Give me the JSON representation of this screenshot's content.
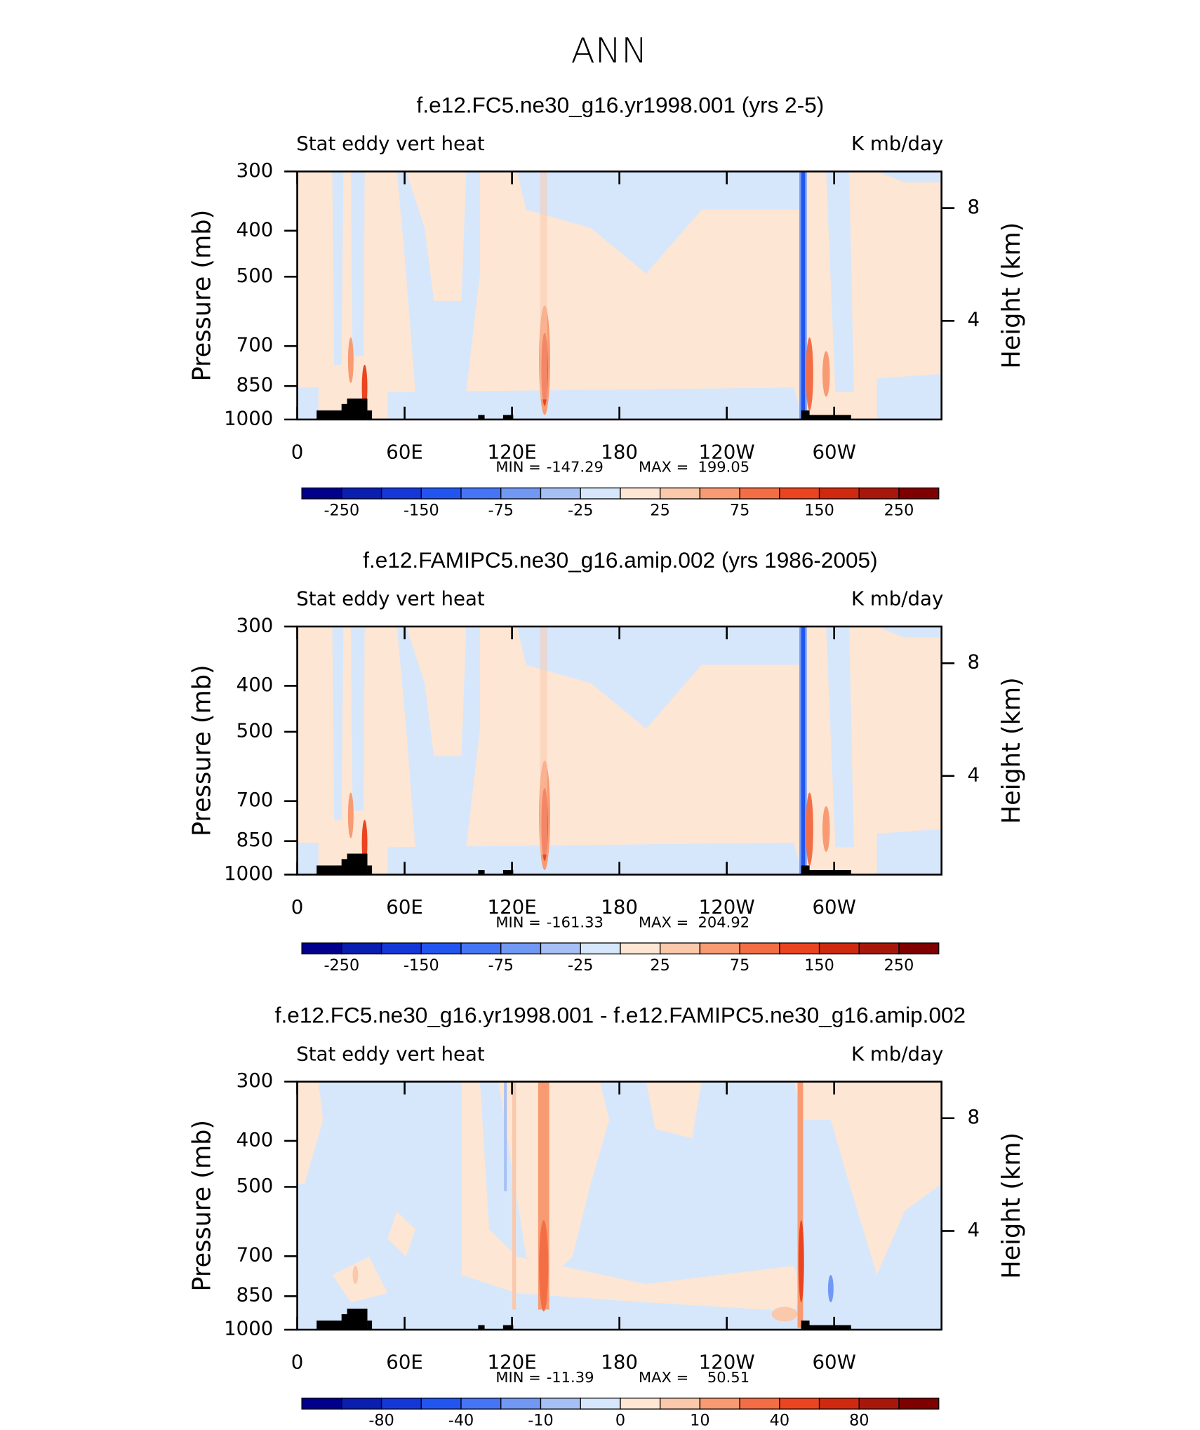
{
  "title": "ANN",
  "chart_data": [
    {
      "type": "contour",
      "title": "f.e12.FC5.ne30_g16.yr1998.001 (yrs 2-5)",
      "left_string": "Stat eddy vert heat",
      "right_string": "K mb/day",
      "ylabel": "Pressure (mb)",
      "y2label": "Height (km)",
      "log_y": true,
      "ylim": [
        1000,
        300
      ],
      "yticks": [
        300,
        400,
        500,
        700,
        850,
        1000
      ],
      "y2lim": [
        0.5,
        9.3
      ],
      "y2ticks": [
        4,
        8
      ],
      "xlim": [
        0,
        360
      ],
      "xticks": [
        0,
        {
          "value": 60,
          "label": "60E"
        },
        {
          "value": 120,
          "label": "120E"
        },
        180,
        {
          "value": 240,
          "label": "120W"
        },
        {
          "value": 300,
          "label": "60W"
        }
      ],
      "min_label": "MIN =",
      "min": -147.29,
      "max_label": "MAX =",
      "max": 199.05,
      "colorbar": {
        "colors": [
          "#00008c",
          "#0a1fb0",
          "#1438d8",
          "#2255f0",
          "#4575f5",
          "#7199f4",
          "#a6c0f5",
          "#d6e7fb",
          "#fde6d4",
          "#fac8ab",
          "#f89a72",
          "#f46e45",
          "#ea4420",
          "#cf2a10",
          "#a8180a",
          "#7f0000"
        ],
        "levels": [
          -250,
          -200,
          -150,
          -100,
          -75,
          -50,
          -25,
          0,
          25,
          50,
          75,
          100,
          150,
          200,
          250
        ],
        "ticks": [
          -250,
          -150,
          -75,
          -25,
          25,
          75,
          150,
          250
        ]
      }
    },
    {
      "type": "contour",
      "title": "f.e12.FAMIPC5.ne30_g16.amip.002 (yrs 1986-2005)",
      "left_string": "Stat eddy vert heat",
      "right_string": "K mb/day",
      "ylabel": "Pressure (mb)",
      "y2label": "Height (km)",
      "log_y": true,
      "ylim": [
        1000,
        300
      ],
      "yticks": [
        300,
        400,
        500,
        700,
        850,
        1000
      ],
      "y2lim": [
        0.5,
        9.3
      ],
      "y2ticks": [
        4,
        8
      ],
      "xlim": [
        0,
        360
      ],
      "xticks": [
        0,
        {
          "value": 60,
          "label": "60E"
        },
        {
          "value": 120,
          "label": "120E"
        },
        180,
        {
          "value": 240,
          "label": "120W"
        },
        {
          "value": 300,
          "label": "60W"
        }
      ],
      "min_label": "MIN =",
      "min": -161.33,
      "max_label": "MAX =",
      "max": 204.92,
      "colorbar": {
        "colors": [
          "#00008c",
          "#0a1fb0",
          "#1438d8",
          "#2255f0",
          "#4575f5",
          "#7199f4",
          "#a6c0f5",
          "#d6e7fb",
          "#fde6d4",
          "#fac8ab",
          "#f89a72",
          "#f46e45",
          "#ea4420",
          "#cf2a10",
          "#a8180a",
          "#7f0000"
        ],
        "levels": [
          -250,
          -200,
          -150,
          -100,
          -75,
          -50,
          -25,
          0,
          25,
          50,
          75,
          100,
          150,
          200,
          250
        ],
        "ticks": [
          -250,
          -150,
          -75,
          -25,
          25,
          75,
          150,
          250
        ]
      }
    },
    {
      "type": "contour",
      "title": "f.e12.FC5.ne30_g16.yr1998.001 - f.e12.FAMIPC5.ne30_g16.amip.002",
      "left_string": "Stat eddy vert heat",
      "right_string": "K mb/day",
      "ylabel": "Pressure (mb)",
      "y2label": "Height (km)",
      "log_y": true,
      "ylim": [
        1000,
        300
      ],
      "yticks": [
        300,
        400,
        500,
        700,
        850,
        1000
      ],
      "y2lim": [
        0.5,
        9.3
      ],
      "y2ticks": [
        4,
        8
      ],
      "xlim": [
        0,
        360
      ],
      "xticks": [
        0,
        {
          "value": 60,
          "label": "60E"
        },
        {
          "value": 120,
          "label": "120E"
        },
        180,
        {
          "value": 240,
          "label": "120W"
        },
        {
          "value": 300,
          "label": "60W"
        }
      ],
      "min_label": "MIN =",
      "min": -11.39,
      "max_label": "MAX =",
      "max": 50.51,
      "colorbar": {
        "colors": [
          "#00008c",
          "#0a1fb0",
          "#1438d8",
          "#2255f0",
          "#4575f5",
          "#7199f4",
          "#a6c0f5",
          "#d6e7fb",
          "#fde6d4",
          "#fac8ab",
          "#f89a72",
          "#f46e45",
          "#ea4420",
          "#cf2a10",
          "#a8180a",
          "#7f0000"
        ],
        "levels": [
          -100,
          -80,
          -60,
          -40,
          -20,
          -10,
          -5,
          0,
          5,
          10,
          20,
          40,
          60,
          80,
          100
        ],
        "ticks": [
          -80,
          -40,
          -10,
          0,
          10,
          40,
          80
        ]
      }
    }
  ]
}
